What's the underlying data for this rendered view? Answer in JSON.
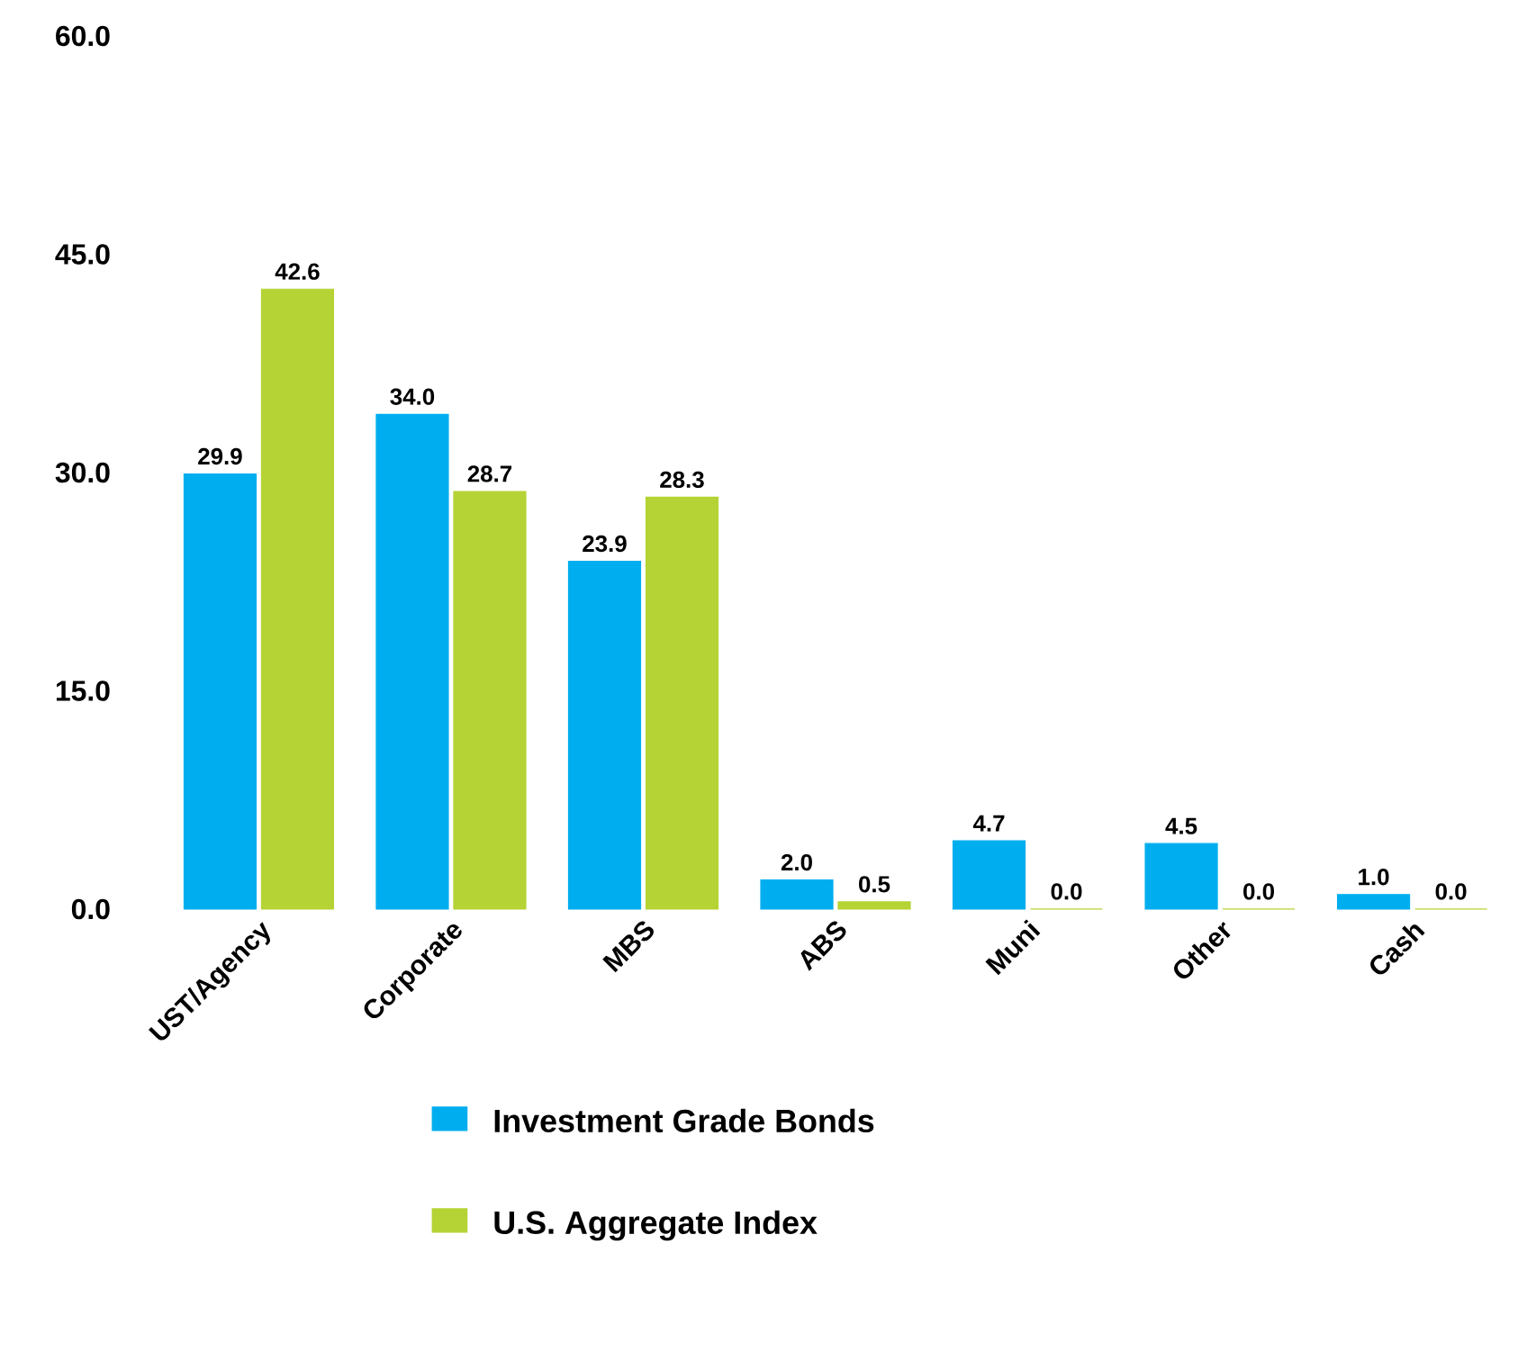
{
  "chart_data": {
    "type": "bar",
    "categories": [
      "UST/Agency",
      "Corporate",
      "MBS",
      "ABS",
      "Muni",
      "Other",
      "Cash"
    ],
    "series": [
      {
        "name": "Investment Grade Bonds",
        "color": "#00aeef",
        "values": [
          29.9,
          34.0,
          23.9,
          2.0,
          4.7,
          4.5,
          1.0
        ],
        "value_labels": [
          "29.9",
          "34.0",
          "23.9",
          "2.0",
          "4.7",
          "4.5",
          "1.0"
        ]
      },
      {
        "name": "U.S. Aggregate Index",
        "color": "#b5d334",
        "values": [
          42.6,
          28.7,
          28.3,
          0.5,
          0.0,
          0.0,
          0.0
        ],
        "value_labels": [
          "42.6",
          "28.7",
          "28.3",
          "0.5",
          "0.0",
          "0.0",
          "0.0"
        ]
      }
    ],
    "ylim": [
      0,
      60
    ],
    "yticks": [
      {
        "value": 0,
        "label": "0.0"
      },
      {
        "value": 15,
        "label": "15.0"
      },
      {
        "value": 30,
        "label": "30.0"
      },
      {
        "value": 45,
        "label": "45.0"
      },
      {
        "value": 60,
        "label": "60.0"
      }
    ],
    "grid": false,
    "legend": "bottom"
  }
}
